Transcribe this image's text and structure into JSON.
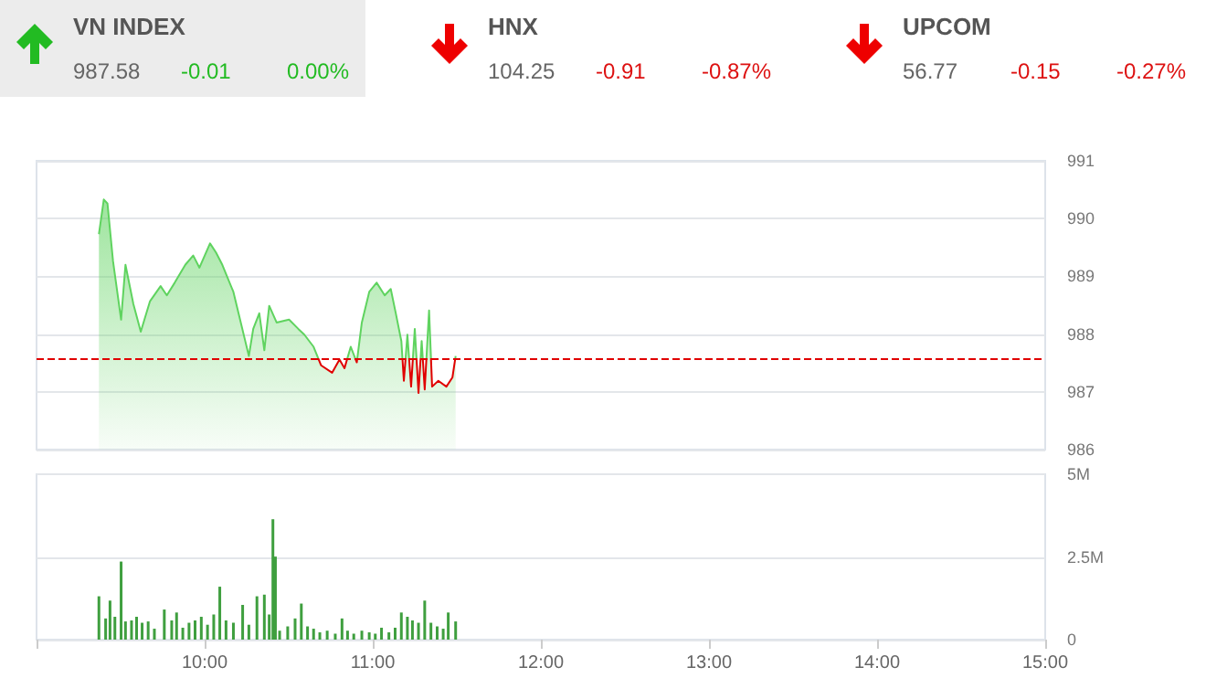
{
  "chart_data": [
    {
      "type": "other",
      "annotations": [
        "VN INDEX",
        "987.58",
        "-0.01",
        "0.00%",
        "HNX",
        "104.25",
        "-0.91",
        "-0.87%",
        "UPCOM",
        "56.77",
        "-0.15",
        "-0.27%"
      ]
    },
    {
      "type": "area",
      "x": [
        9.371,
        9.4,
        9.422,
        9.455,
        9.503,
        9.529,
        9.576,
        9.62,
        9.675,
        9.738,
        9.775,
        9.822,
        9.885,
        9.932,
        9.969,
        10.032,
        10.068,
        10.105,
        10.171,
        10.263,
        10.289,
        10.325,
        10.355,
        10.384,
        10.428,
        10.502,
        10.557,
        10.593,
        10.648,
        10.692,
        10.758,
        10.802,
        10.832,
        10.869,
        10.905,
        10.935,
        10.979,
        11.023,
        11.071,
        11.107,
        11.137,
        11.17,
        11.185,
        11.206,
        11.228,
        11.25,
        11.272,
        11.291,
        11.309,
        11.335,
        11.353,
        11.39,
        11.438,
        11.474,
        11.493
      ],
      "series": [
        {
          "color": "#5fd35f",
          "values": [
            989.73,
            990.33,
            990.26,
            989.26,
            988.25,
            989.2,
            988.52,
            988.04,
            988.57,
            988.83,
            988.67,
            988.89,
            989.2,
            989.36,
            989.15,
            989.57,
            989.41,
            989.2,
            988.73,
            987.62,
            988.09,
            988.36,
            987.72,
            988.49,
            988.2,
            988.25,
            988.09,
            987.99,
            987.78,
            987.46,
            987.33,
            987.56,
            987.41,
            987.78,
            987.51,
            988.2,
            988.73,
            988.89,
            988.67,
            988.78,
            988.36,
            987.88,
            987.19,
            987.99,
            987.09,
            988.09,
            986.98,
            987.88,
            987.04,
            988.41,
            987.09,
            987.19,
            987.09,
            987.25,
            987.62
          ]
        }
      ],
      "xlim": [
        9,
        15
      ],
      "ylim": [
        986,
        991
      ],
      "yticks": [
        986,
        987,
        988,
        989,
        990,
        991
      ],
      "grid": "y",
      "tick_labels": "y",
      "ref_lines": [
        {
          "axis": "y",
          "value": 987.59,
          "color": "#e00000",
          "line_style": "dashed"
        }
      ]
    },
    {
      "type": "bar",
      "x": [
        9.371,
        9.411,
        9.437,
        9.466,
        9.503,
        9.529,
        9.565,
        9.595,
        9.628,
        9.664,
        9.701,
        9.76,
        9.804,
        9.833,
        9.87,
        9.907,
        9.943,
        9.98,
        10.017,
        10.054,
        10.09,
        10.127,
        10.171,
        10.226,
        10.263,
        10.311,
        10.355,
        10.384,
        10.406,
        10.421,
        10.446,
        10.494,
        10.538,
        10.575,
        10.612,
        10.648,
        10.685,
        10.729,
        10.777,
        10.817,
        10.85,
        10.887,
        10.935,
        10.979,
        11.015,
        11.052,
        11.096,
        11.133,
        11.17,
        11.206,
        11.236,
        11.272,
        11.309,
        11.346,
        11.383,
        11.419,
        11.449,
        11.493
      ],
      "series": [
        {
          "color": "#3f9f3f",
          "values": [
            1.31,
            0.64,
            1.18,
            0.69,
            2.36,
            0.55,
            0.58,
            0.69,
            0.51,
            0.55,
            0.33,
            0.91,
            0.58,
            0.82,
            0.36,
            0.51,
            0.58,
            0.69,
            0.45,
            0.76,
            1.6,
            0.58,
            0.51,
            1.05,
            0.45,
            1.31,
            1.36,
            0.76,
            3.64,
            2.51,
            0.27,
            0.4,
            0.64,
            1.09,
            0.4,
            0.33,
            0.22,
            0.27,
            0.18,
            0.64,
            0.27,
            0.18,
            0.27,
            0.22,
            0.18,
            0.36,
            0.22,
            0.36,
            0.82,
            0.69,
            0.58,
            0.51,
            1.18,
            0.51,
            0.4,
            0.33,
            0.82,
            0.55
          ]
        }
      ],
      "xlim": [
        9,
        15
      ],
      "xticks": [
        {
          "value": 10,
          "label": "10:00"
        },
        {
          "value": 11,
          "label": "11:00"
        },
        {
          "value": 12,
          "label": "12:00"
        },
        {
          "value": 13,
          "label": "13:00"
        },
        {
          "value": 14,
          "label": "14:00"
        },
        {
          "value": 15,
          "label": "15:00"
        }
      ],
      "ylim": [
        0,
        5
      ],
      "yticks": [
        0,
        {
          "value": 2.5,
          "label": "2.5M"
        },
        {
          "value": 5,
          "label": "5M"
        }
      ],
      "grid": "y"
    }
  ]
}
